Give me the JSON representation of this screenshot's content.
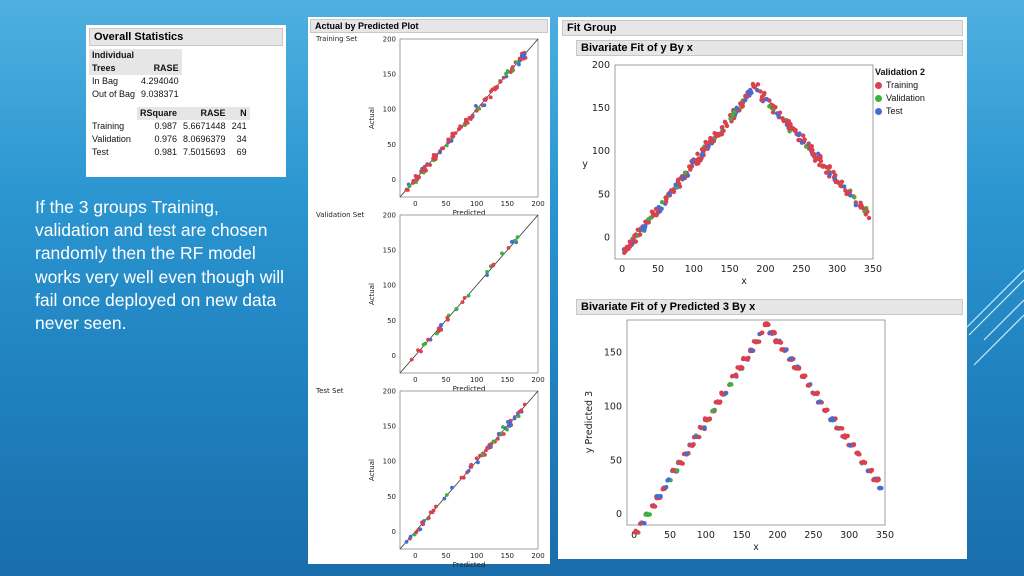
{
  "overall_stats": {
    "title": "Overall Statistics",
    "tree_header": [
      "Individual",
      "Trees"
    ],
    "rase_header": "RASE",
    "in_bag_label": "In Bag",
    "in_bag_value": "4.294040",
    "out_of_bag_label": "Out of Bag",
    "out_of_bag_value": "9.038371",
    "metrics_headers": [
      "RSquare",
      "RASE",
      "N"
    ],
    "rows": [
      {
        "label": "Training",
        "rsquare": "0.987",
        "rase": "5.6671448",
        "n": "241"
      },
      {
        "label": "Validation",
        "rsquare": "0.976",
        "rase": "8.0696379",
        "n": "34"
      },
      {
        "label": "Test",
        "rsquare": "0.981",
        "rase": "7.5015693",
        "n": "69"
      }
    ]
  },
  "caption": "If the 3 groups Training, validation and test are chosen randomly then the RF model works very well even though will fail once deployed on new data never seen.",
  "avp": {
    "title": "Actual by Predicted Plot",
    "xlabel": "Predicted",
    "ylabel": "Actual",
    "sets": [
      "Training Set",
      "Validation Set",
      "Test Set"
    ],
    "ticks": [
      "0",
      "50",
      "100",
      "150",
      "200"
    ]
  },
  "fit_group": {
    "title": "Fit Group",
    "plot1_title": "Bivariate Fit of y By x",
    "plot1_ylabel": "y",
    "plot2_title": "Bivariate Fit of y Predicted 3 By x",
    "plot2_ylabel": "y Predicted 3",
    "xlabel": "x",
    "xticks": [
      "0",
      "50",
      "100",
      "150",
      "200",
      "250",
      "300",
      "350"
    ],
    "y1ticks": [
      "0",
      "50",
      "100",
      "150",
      "200"
    ],
    "y2ticks": [
      "0",
      "50",
      "100",
      "150"
    ],
    "legend_title": "Validation 2",
    "legend": [
      {
        "label": "Training",
        "color": "#d9414e"
      },
      {
        "label": "Validation",
        "color": "#3cb043"
      },
      {
        "label": "Test",
        "color": "#3f6fd6"
      }
    ]
  },
  "colors": {
    "training": "#d9414e",
    "validation": "#3cb043",
    "test": "#3f6fd6"
  }
}
